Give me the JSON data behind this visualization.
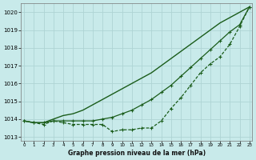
{
  "xlabel": "Graphe pression niveau de la mer (hPa)",
  "ylim": [
    1012.8,
    1020.5
  ],
  "xlim": [
    -0.3,
    23.3
  ],
  "yticks": [
    1013,
    1014,
    1015,
    1016,
    1017,
    1018,
    1019,
    1020
  ],
  "xticks": [
    0,
    1,
    2,
    3,
    4,
    5,
    6,
    7,
    8,
    9,
    10,
    11,
    12,
    13,
    14,
    15,
    16,
    17,
    18,
    19,
    20,
    21,
    22,
    23
  ],
  "bg_color": "#c8eaea",
  "grid_color": "#aed4d4",
  "line_color": "#1a5c1a",
  "line1": [
    1013.9,
    1013.8,
    1013.8,
    1014.0,
    1014.2,
    1014.3,
    1014.5,
    1014.8,
    1015.1,
    1015.4,
    1015.7,
    1016.0,
    1016.3,
    1016.6,
    1017.0,
    1017.4,
    1017.8,
    1018.2,
    1018.6,
    1019.0,
    1019.4,
    1019.7,
    1020.0,
    1020.3
  ],
  "line2": [
    1013.9,
    1013.8,
    1013.8,
    1013.9,
    1013.9,
    1013.9,
    1013.9,
    1013.9,
    1014.0,
    1014.1,
    1014.3,
    1014.5,
    1014.8,
    1015.1,
    1015.5,
    1015.9,
    1016.4,
    1016.9,
    1017.4,
    1017.9,
    1018.4,
    1018.9,
    1019.3,
    1020.3
  ],
  "line3": [
    1013.9,
    1013.8,
    1013.7,
    1013.9,
    1013.8,
    1013.7,
    1013.7,
    1013.7,
    1013.7,
    1013.3,
    1013.4,
    1013.4,
    1013.5,
    1013.5,
    1013.9,
    1014.6,
    1015.2,
    1015.9,
    1016.6,
    1017.1,
    1017.5,
    1018.2,
    1019.2,
    1020.3
  ]
}
